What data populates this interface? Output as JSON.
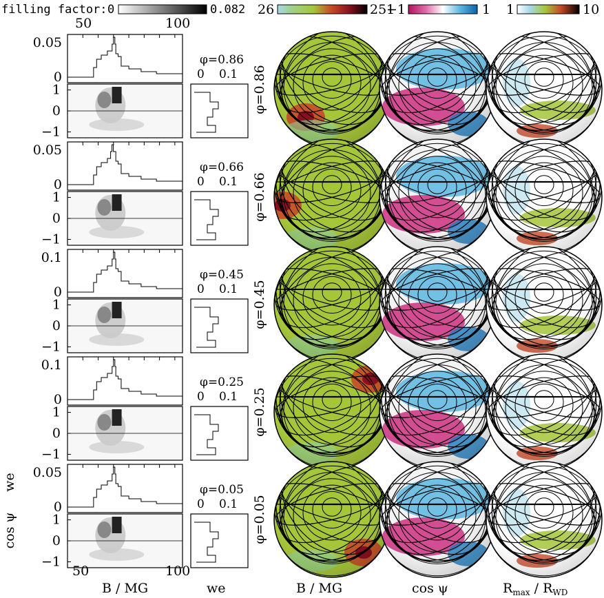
{
  "colorbars": {
    "filling_factor": {
      "label": "filling factor:",
      "min": "0",
      "max": "0.082"
    },
    "b_field": {
      "min": "26",
      "max": "251"
    },
    "cos_psi": {
      "min": "−1",
      "max": "1"
    },
    "r_ratio": {
      "min": "1",
      "max": "10"
    }
  },
  "top_axis": {
    "ticks": [
      "50",
      "100"
    ]
  },
  "bottom_axis": {
    "ticks": [
      "50",
      "100"
    ],
    "xlabel_left": "B / MG",
    "xlabel_we": "we",
    "xlabel_col1": "B / MG",
    "xlabel_col2": "cos ψ",
    "xlabel_col3": "R",
    "xlabel_col3_sub1": "max",
    "xlabel_col3_mid": " / R",
    "xlabel_col3_sub2": "WD"
  },
  "ylabel_we": "we",
  "ylabel_cos": "cos ψ",
  "we_ticks": [
    "0",
    "0.1"
  ],
  "rows": [
    {
      "phase": "φ=0.86",
      "ytick_top": "0.05",
      "ytick_zero": "0",
      "b_peak": 70,
      "b_spot": "lower-left",
      "cos_pattern": "magenta-middle",
      "r_pattern": "green-band-low"
    },
    {
      "phase": "φ=0.66",
      "ytick_top": "0.05",
      "ytick_zero": "0",
      "b_peak": 69,
      "b_spot": "upper-left",
      "cos_pattern": "magenta-left",
      "r_pattern": "red-lower-left"
    },
    {
      "phase": "φ=0.45",
      "ytick_top": "0.1",
      "ytick_zero": "0",
      "b_peak": 70,
      "b_spot": "none",
      "cos_pattern": "magenta-top",
      "r_pattern": "green-right-edge"
    },
    {
      "phase": "φ=0.25",
      "ytick_top": "0.1",
      "ytick_zero": "0",
      "b_peak": 70,
      "b_spot": "upper-right",
      "cos_pattern": "magenta-top-band",
      "r_pattern": "red-bottom"
    },
    {
      "phase": "φ=0.05",
      "ytick_top": "0.05",
      "ytick_zero": "0",
      "b_peak": 70,
      "b_spot": "lower-right",
      "cos_pattern": "blue-left",
      "r_pattern": "green-edges"
    }
  ],
  "cos_ticks": [
    "1",
    "0",
    "−1"
  ]
}
